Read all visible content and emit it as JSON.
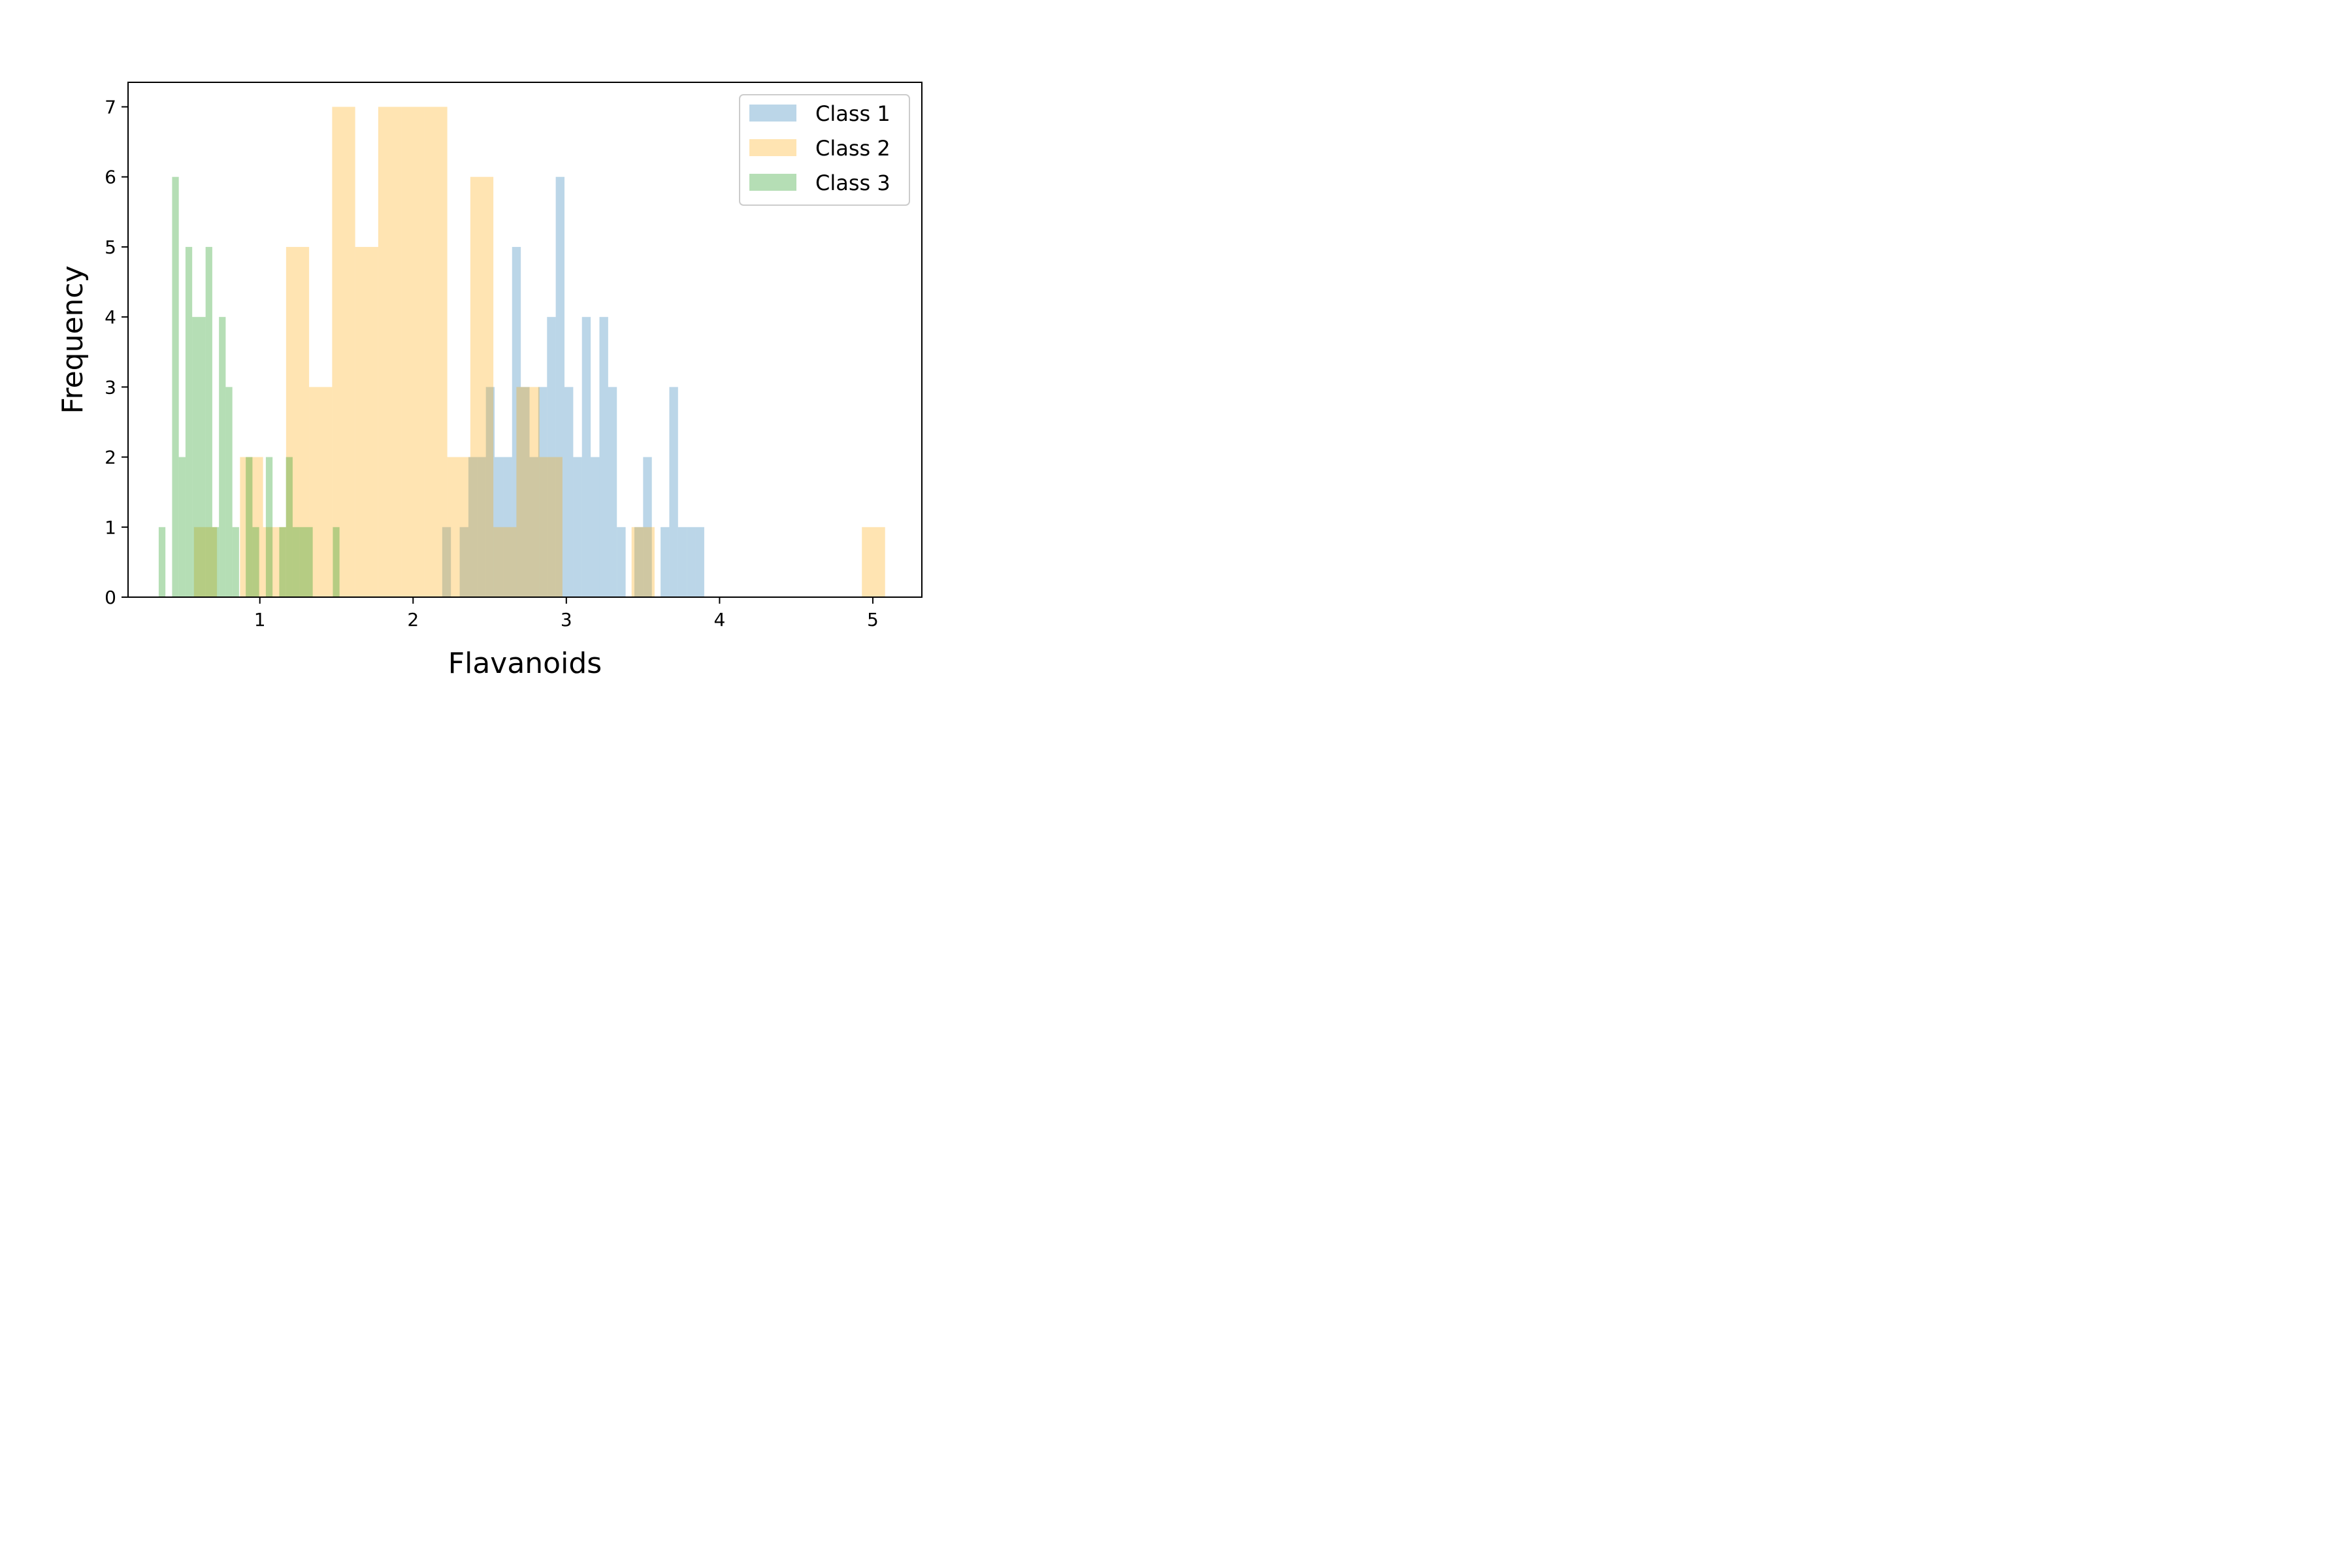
{
  "chart_data": {
    "type": "bar",
    "subtype": "histogram",
    "xlabel": "Flavanoids",
    "ylabel": "Frequency",
    "xlim": [
      0.14,
      5.32
    ],
    "ylim": [
      0,
      7.35
    ],
    "xticks": [
      1,
      2,
      3,
      4,
      5
    ],
    "yticks": [
      0,
      1,
      2,
      3,
      4,
      5,
      6,
      7
    ],
    "grid": false,
    "legend_position": "top-right",
    "series": [
      {
        "name": "Class 1",
        "color": "#1f77b4",
        "alpha": 0.3,
        "bin_edges": [
          2.19,
          2.247,
          2.304,
          2.361,
          2.418,
          2.475,
          2.532,
          2.589,
          2.646,
          2.703,
          2.76,
          2.817,
          2.874,
          2.931,
          2.988,
          3.045,
          3.102,
          3.159,
          3.216,
          3.273,
          3.33,
          3.387,
          3.444,
          3.501,
          3.558,
          3.615,
          3.672,
          3.729,
          3.786,
          3.843,
          3.9
        ],
        "counts": [
          1,
          0,
          1,
          2,
          2,
          3,
          2,
          2,
          5,
          3,
          2,
          3,
          4,
          6,
          3,
          2,
          4,
          2,
          4,
          3,
          1,
          0,
          1,
          2,
          0,
          1,
          3,
          1,
          1,
          1
        ]
      },
      {
        "name": "Class 2",
        "color": "#ffa500",
        "alpha": 0.3,
        "bin_edges": [
          0.57,
          0.7203,
          0.8706,
          1.0209,
          1.1712,
          1.3215,
          1.4718,
          1.6221,
          1.7724,
          1.9227,
          2.073,
          2.2233,
          2.3736,
          2.5239,
          2.6742,
          2.8245,
          2.9748,
          3.1251,
          3.2754,
          3.4257,
          3.576,
          3.7263,
          3.8766,
          4.0269,
          4.1772,
          4.3275,
          4.4778,
          4.6281,
          4.7784,
          4.9287,
          5.08
        ],
        "counts": [
          1,
          0,
          2,
          1,
          5,
          3,
          7,
          5,
          7,
          7,
          7,
          2,
          6,
          1,
          3,
          2,
          0,
          0,
          0,
          1,
          0,
          0,
          0,
          0,
          0,
          0,
          0,
          0,
          0,
          1
        ]
      },
      {
        "name": "Class 3",
        "color": "#2ca02c",
        "alpha": 0.35,
        "bin_edges": [
          0.34,
          0.3837,
          0.4274,
          0.4711,
          0.5148,
          0.5585,
          0.6022,
          0.6459,
          0.6896,
          0.7333,
          0.777,
          0.8207,
          0.8644,
          0.9081,
          0.9518,
          0.9955,
          1.0392,
          1.0829,
          1.1266,
          1.1703,
          1.214,
          1.2577,
          1.3014,
          1.3451,
          1.3888,
          1.4325,
          1.4762,
          1.5199,
          1.5636,
          1.6073,
          1.651
        ],
        "counts": [
          1,
          0,
          6,
          2,
          5,
          4,
          4,
          5,
          1,
          4,
          3,
          1,
          0,
          2,
          1,
          0,
          2,
          0,
          1,
          2,
          1,
          1,
          1,
          0,
          0,
          0,
          1,
          0,
          0,
          0
        ]
      }
    ]
  }
}
